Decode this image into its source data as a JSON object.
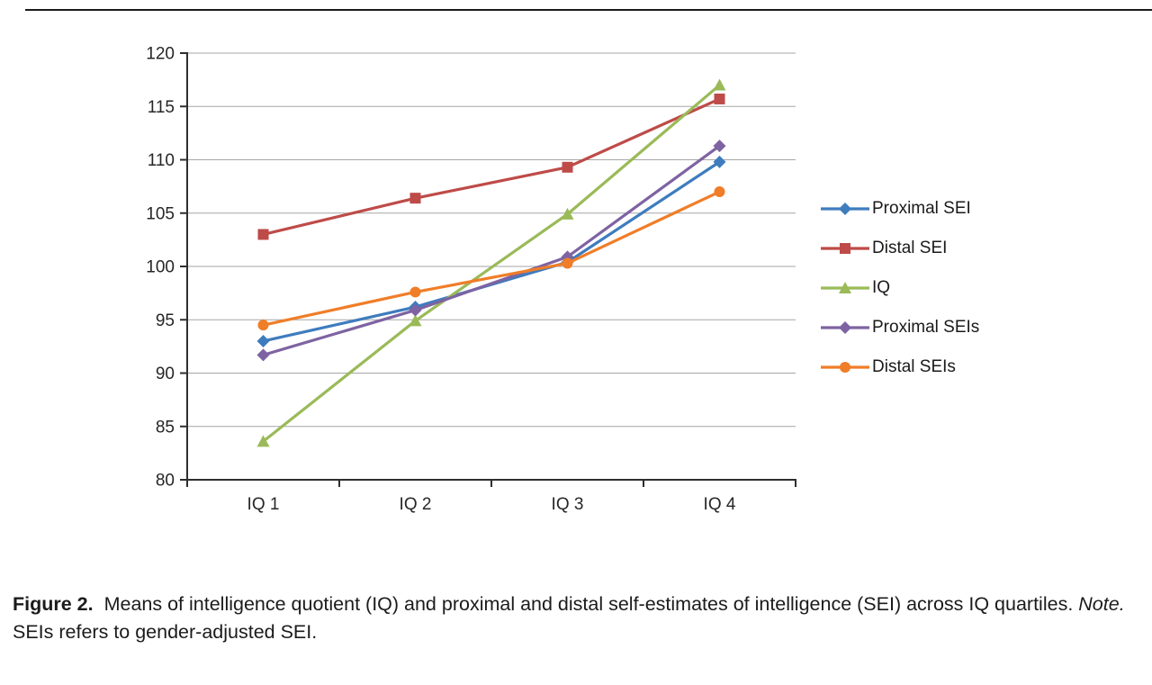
{
  "caption": {
    "figure_label": "Figure 2.",
    "body": "Means of intelligence quotient (IQ) and proximal and distal self-estimates of intelligence (SEI) across IQ quartiles.",
    "note_label": "Note.",
    "note_body": "SEIs refers to gender-adjusted SEI."
  },
  "chart_data": {
    "type": "line",
    "categories": [
      "IQ 1",
      "IQ 2",
      "IQ 3",
      "IQ 4"
    ],
    "series": [
      {
        "name": "Proximal SEI",
        "color": "#3E7CBE",
        "marker": "diamond",
        "values": [
          93.0,
          96.2,
          100.4,
          109.8
        ]
      },
      {
        "name": "Distal SEI",
        "color": "#BE4B48",
        "marker": "square",
        "values": [
          103.0,
          106.4,
          109.3,
          115.7
        ]
      },
      {
        "name": "IQ",
        "color": "#9ABA58",
        "marker": "triangle",
        "values": [
          83.6,
          94.9,
          104.9,
          117.0
        ]
      },
      {
        "name": "Proximal SEIs",
        "color": "#7E63A2",
        "marker": "diamond",
        "values": [
          91.7,
          95.9,
          100.9,
          111.3
        ]
      },
      {
        "name": "Distal SEIs",
        "color": "#F07D28",
        "marker": "circle",
        "values": [
          94.5,
          97.6,
          100.3,
          107.0
        ]
      }
    ],
    "title": "",
    "xlabel": "",
    "ylabel": "",
    "ylim": [
      80,
      120
    ],
    "ytick_step": 5,
    "grid": true,
    "legend_position": "right",
    "grid_color": "#a6a6a6",
    "axis_color": "#2e2e2e",
    "tick_label_color": "#262626"
  }
}
